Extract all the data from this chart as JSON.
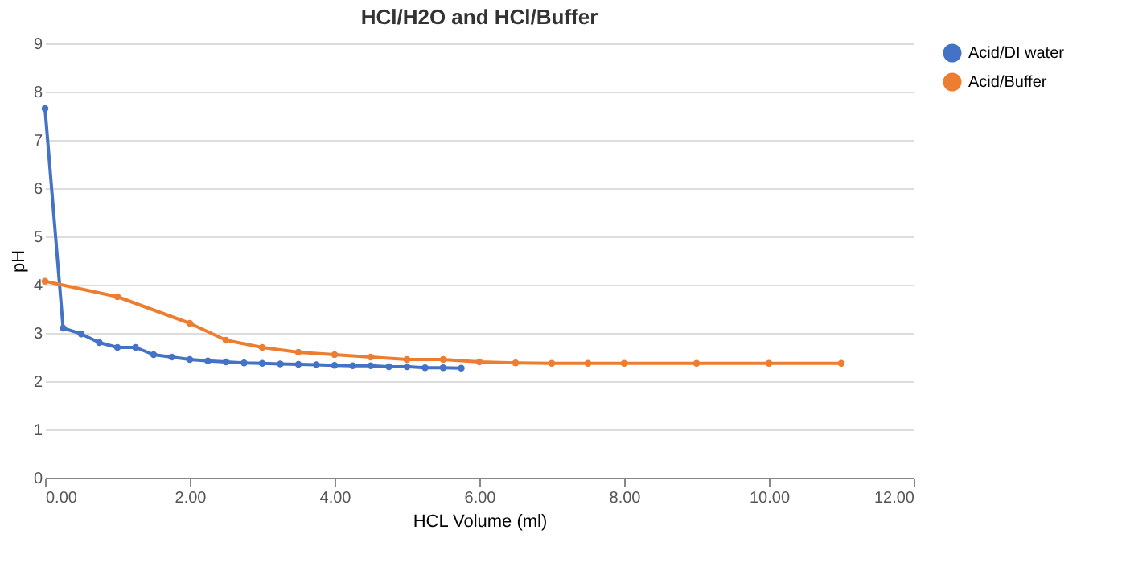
{
  "chart_data": {
    "type": "line",
    "title": "HCl/H2O and HCl/Buffer",
    "xlabel": "HCL Volume (ml)",
    "ylabel": "pH",
    "xlim": [
      0,
      12
    ],
    "xticks": [
      {
        "value": 0,
        "label": "0.00"
      },
      {
        "value": 2,
        "label": "2.00"
      },
      {
        "value": 4,
        "label": "4.00"
      },
      {
        "value": 6,
        "label": "6.00"
      },
      {
        "value": 8,
        "label": "8.00"
      },
      {
        "value": 10,
        "label": "10.00"
      },
      {
        "value": 12,
        "label": "12.00"
      }
    ],
    "ylim": [
      0,
      9
    ],
    "yticks": [
      0,
      1,
      2,
      3,
      4,
      5,
      6,
      7,
      8,
      9
    ],
    "grid": "y",
    "legend": "right",
    "marker": "circle",
    "series": [
      {
        "name": "Acid/DI water",
        "color": "#4472c4",
        "x": [
          0,
          0.25,
          0.5,
          0.75,
          1,
          1.25,
          1.5,
          1.75,
          2,
          2.25,
          2.5,
          2.75,
          3,
          3.25,
          3.5,
          3.75,
          4,
          4.25,
          4.5,
          4.75,
          5,
          5.25,
          5.5,
          5.75
        ],
        "values": [
          7.65,
          3.1,
          2.98,
          2.8,
          2.7,
          2.7,
          2.55,
          2.5,
          2.45,
          2.42,
          2.4,
          2.38,
          2.37,
          2.36,
          2.35,
          2.34,
          2.33,
          2.32,
          2.32,
          2.3,
          2.3,
          2.28,
          2.28,
          2.27
        ]
      },
      {
        "name": "Acid/Buffer",
        "color": "#ed7d31",
        "x": [
          0,
          1,
          2,
          2.5,
          3,
          3.5,
          4,
          4.5,
          5,
          5.5,
          6,
          6.5,
          7,
          7.5,
          8,
          9,
          10,
          11
        ],
        "values": [
          4.07,
          3.75,
          3.2,
          2.85,
          2.7,
          2.6,
          2.55,
          2.5,
          2.45,
          2.45,
          2.4,
          2.38,
          2.37,
          2.37,
          2.37,
          2.37,
          2.37,
          2.37
        ]
      }
    ]
  }
}
